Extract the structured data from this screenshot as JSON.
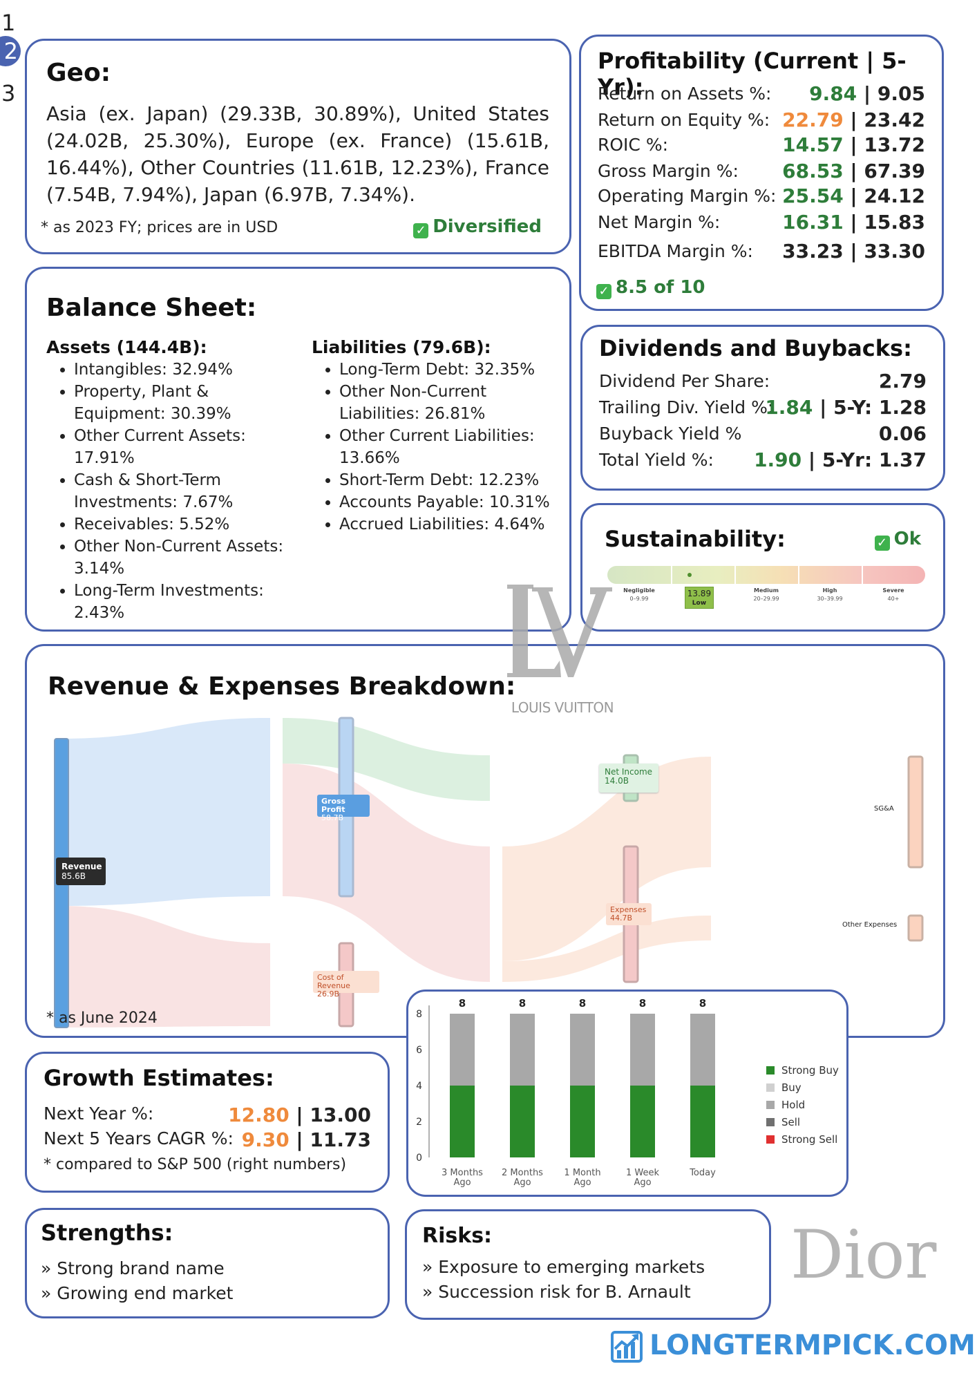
{
  "pagination": {
    "pages": [
      "1",
      "2",
      "3"
    ],
    "current": "2"
  },
  "geo": {
    "title": "Geo:",
    "text": "Asia (ex. Japan) (29.33B, 30.89%), United States (24.02B, 25.30%), Europe (ex. France) (15.61B, 16.44%), Other Countries (11.61B, 12.23%), France (7.54B, 7.94%), Japan (6.97B, 7.34%).",
    "note": "* as 2023 FY; prices are in USD",
    "badge": "Diversified"
  },
  "profitability": {
    "title": "Profitability (Current | 5-Yr):",
    "rows": [
      {
        "label": "Return on Assets %:",
        "current": "9.84",
        "five_yr": "9.05",
        "color": "#2e7d3a"
      },
      {
        "label": "Return on Equity %:",
        "current": "22.79",
        "five_yr": "23.42",
        "color": "#ef8a3c"
      },
      {
        "label": "ROIC %:",
        "current": "14.57",
        "five_yr": "13.72",
        "color": "#2e7d3a"
      },
      {
        "label": "Gross Margin %:",
        "current": "68.53",
        "five_yr": "67.39",
        "color": "#2e7d3a"
      },
      {
        "label": "Operating Margin %:",
        "current": "25.54",
        "five_yr": "24.12",
        "color": "#2e7d3a"
      },
      {
        "label": "Net Margin %:",
        "current": "16.31",
        "five_yr": "15.83",
        "color": "#2e7d3a"
      },
      {
        "label": "EBITDA Margin %:",
        "current": "33.23",
        "five_yr": "33.30",
        "color": "#222222"
      }
    ],
    "score": "8.5 of 10"
  },
  "balance_sheet": {
    "title": "Balance Sheet:",
    "assets_title": "Assets (144.4B):",
    "assets": [
      "Intangibles: 32.94%",
      "Property, Plant & Equipment: 30.39%",
      "Other Current Assets: 17.91%",
      "Cash & Short-Term Investments: 7.67%",
      "Receivables: 5.52%",
      "Other Non-Current Assets: 3.14%",
      "Long-Term Investments: 2.43%"
    ],
    "liabilities_title": "Liabilities (79.6B):",
    "liabilities": [
      "Long-Term Debt: 32.35%",
      "Other Non-Current Liabilities: 26.81%",
      "Other Current Liabilities: 13.66%",
      "Short-Term Debt: 12.23%",
      "Accounts Payable: 10.31%",
      "Accrued Liabilities: 4.64%"
    ]
  },
  "dividends": {
    "title": "Dividends and Buybacks:",
    "rows": [
      {
        "label": "Dividend Per Share:",
        "value": "2.79",
        "extra": ""
      },
      {
        "label": "Trailing Div. Yield %:",
        "value": "1.84",
        "extra": "5-Y: 1.28"
      },
      {
        "label": "Buyback Yield %",
        "value": "0.06",
        "extra": ""
      },
      {
        "label": "Total Yield %:",
        "value": "1.90",
        "extra": "5-Yr: 1.37"
      }
    ]
  },
  "sustainability": {
    "title": "Sustainability:",
    "badge": "Ok",
    "score": "13.89",
    "score_label": "Low",
    "score_fraction": 0.28,
    "categories": [
      {
        "name": "Negligible",
        "range": "0–9.99"
      },
      {
        "name": "Medium",
        "range": "20–29.99"
      },
      {
        "name": "High",
        "range": "30–39.99"
      },
      {
        "name": "Severe",
        "range": "40+"
      }
    ]
  },
  "logos": {
    "lv_monogram": "LV",
    "lv_text": "LOUIS VUITTON",
    "dior": "Dior"
  },
  "revenue": {
    "title": "Revenue & Expenses Breakdown:",
    "note": "* as June 2024",
    "nodes": {
      "revenue": {
        "name": "Revenue",
        "value": "85.6B"
      },
      "gross_profit": {
        "name": "Gross Profit",
        "value": "58.7B"
      },
      "cost_of_revenue": {
        "name": "Cost of Revenue",
        "value": "26.9B"
      },
      "net_income": {
        "name": "Net Income",
        "value": "14.0B"
      },
      "expenses": {
        "name": "Expenses",
        "value": "44.7B"
      },
      "sga": {
        "name": "SG&A"
      },
      "other_expenses": {
        "name": "Other Expenses"
      }
    }
  },
  "growth": {
    "title": "Growth Estimates:",
    "rows": [
      {
        "label": "Next Year %:",
        "value": "12.80",
        "sp": "13.00"
      },
      {
        "label": "Next 5 Years CAGR %:",
        "value": "9.30",
        "sp": "11.73"
      }
    ],
    "note": "* compared to S&P 500 (right numbers)"
  },
  "chart_data": {
    "type": "bar",
    "categories": [
      "3 Months Ago",
      "2 Months Ago",
      "1 Month Ago",
      "1 Week Ago",
      "Today"
    ],
    "series": [
      {
        "name": "Strong Buy",
        "values": [
          4,
          4,
          4,
          4,
          4
        ],
        "color": "#2a8a2a"
      },
      {
        "name": "Buy",
        "values": [
          0,
          0,
          0,
          0,
          0
        ],
        "color": "#d0d0d0"
      },
      {
        "name": "Hold",
        "values": [
          4,
          4,
          4,
          4,
          4
        ],
        "color": "#a8a8a8"
      },
      {
        "name": "Sell",
        "values": [
          0,
          0,
          0,
          0,
          0
        ],
        "color": "#707070"
      },
      {
        "name": "Strong Sell",
        "values": [
          0,
          0,
          0,
          0,
          0
        ],
        "color": "#e03030"
      }
    ],
    "totals": [
      "8",
      "8",
      "8",
      "8",
      "8"
    ],
    "yticks": [
      "0",
      "2",
      "4",
      "6",
      "8"
    ],
    "ylim": [
      0,
      8
    ],
    "stacked": true,
    "legend": "right"
  },
  "strengths": {
    "title": "Strengths:",
    "items": [
      "» Strong brand name",
      "» Growing end market"
    ]
  },
  "risks": {
    "title": "Risks:",
    "items": [
      "» Exposure to emerging markets",
      "» Succession risk for B. Arnault"
    ]
  },
  "footer": {
    "brand": "LONGTERMPICK.COM"
  }
}
